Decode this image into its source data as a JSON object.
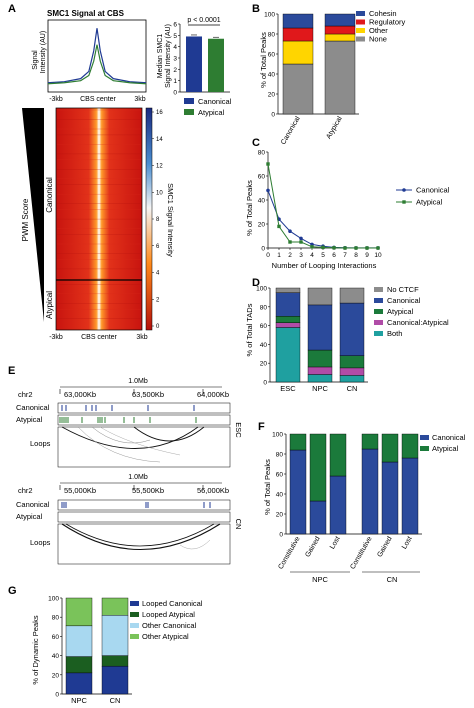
{
  "colors": {
    "navy": "#1f3a93",
    "green": "#2e7d32",
    "heat_high": "#ffffff",
    "heat_mid": "#ff7a1a",
    "heat_low": "#c8140f",
    "cohesin": "#2b4a9b",
    "regulatory": "#e0181b",
    "other": "#ffd500",
    "none": "#8c8c8c",
    "noctcf": "#8c8c8c",
    "canonical": "#2b4a9b",
    "atypical": "#1b7a3b",
    "canatyp": "#b04ca7",
    "both": "#1fa0a0",
    "looped_canonical": "#1f3a93",
    "looped_atypical": "#1b5e20",
    "other_canonical": "#a8d8f0",
    "other_atypical": "#7ac35a"
  },
  "panels": {
    "A": {
      "label": "A",
      "title": "SMC1 Signal at CBS",
      "profile_ylabel": "Signal\nIntensity (AU)",
      "x_ticks": [
        "-3kb",
        "CBS center",
        "3kb"
      ],
      "pvalue": "p < 0.0001",
      "bar_ylabel": "Median SMC1\nSignal Intensity (AU)",
      "bar_yticks": [
        "0",
        "1",
        "2",
        "3",
        "4",
        "5",
        "6"
      ],
      "legend": [
        "Canonical",
        "Atypical"
      ],
      "heat_rowlabels": [
        "Canonical",
        "Atypical"
      ],
      "pwm_label": "PWM Score",
      "colorbar_label": "SMC1 Signal Intensity",
      "colorbar_ticks": [
        "16",
        "14",
        "12",
        "10",
        "8",
        "6",
        "4",
        "2",
        "0"
      ]
    },
    "B": {
      "label": "B",
      "ylabel": "% of Total Peaks",
      "legend": [
        "Cohesin",
        "Regulatory",
        "Other",
        "None"
      ]
    },
    "C": {
      "label": "C",
      "ylabel": "% of Total Peaks",
      "xlabel": "Number of Looping Interactions",
      "legend": [
        "Canonical",
        "Atypical"
      ]
    },
    "D": {
      "label": "D",
      "ylabel": "% of Total TADs",
      "legend": [
        "No CTCF",
        "Canonical",
        "Atypical",
        "Canonical:Atypical",
        "Both"
      ]
    },
    "E": {
      "label": "E",
      "track1": {
        "scale": "1.0Mb",
        "chr": "chr2",
        "ticks": [
          "63,000Kb",
          "63,500Kb",
          "64,000Kb"
        ],
        "rows": [
          "Canonical",
          "Atypical",
          "Loops"
        ],
        "cell": "ESC"
      },
      "track2": {
        "scale": "1.0Mb",
        "chr": "chr2",
        "ticks": [
          "55,000Kb",
          "55,500Kb",
          "56,000Kb"
        ],
        "rows": [
          "Canonical",
          "Atypical",
          "Loops"
        ],
        "cell": "CN"
      }
    },
    "F": {
      "label": "F",
      "ylabel": "% of Total Peaks",
      "legend": [
        "Canonical",
        "Atypical"
      ],
      "groups": [
        "NPC",
        "CN"
      ]
    },
    "G": {
      "label": "G",
      "ylabel": "% of Dynamic Peaks",
      "legend": [
        "Looped Canonical",
        "Looped Atypical",
        "Other Canonical",
        "Other Atypical"
      ]
    }
  },
  "chart_data": [
    {
      "panel": "A-profile",
      "type": "line",
      "x": [
        -3,
        -2,
        -1,
        -0.5,
        -0.2,
        0,
        0.2,
        0.5,
        1,
        2,
        3
      ],
      "series": [
        {
          "name": "Canonical",
          "values": [
            0.9,
            1.0,
            1.3,
            2.0,
            4.0,
            6.2,
            4.0,
            2.0,
            1.3,
            1.0,
            0.9
          ]
        },
        {
          "name": "Atypical",
          "values": [
            0.8,
            0.9,
            1.1,
            1.6,
            3.0,
            4.6,
            3.0,
            1.6,
            1.1,
            0.9,
            0.8
          ]
        }
      ]
    },
    {
      "panel": "A-bar",
      "type": "bar",
      "categories": [
        "Canonical",
        "Atypical"
      ],
      "values": [
        4.9,
        4.7
      ],
      "ylim": [
        0,
        6
      ]
    },
    {
      "panel": "A-heatmap",
      "type": "heatmap",
      "rows": [
        "Canonical",
        "Atypical"
      ],
      "colorbar_range": [
        0,
        16
      ]
    },
    {
      "panel": "B",
      "type": "bar",
      "stacked": true,
      "categories": [
        "Canonical",
        "Atypical"
      ],
      "yticks": [
        0,
        20,
        40,
        60,
        80,
        100
      ],
      "ylim": [
        0,
        100
      ],
      "series": [
        {
          "name": "None",
          "values": [
            50,
            73
          ]
        },
        {
          "name": "Other",
          "values": [
            23,
            7
          ]
        },
        {
          "name": "Regulatory",
          "values": [
            13,
            8
          ]
        },
        {
          "name": "Cohesin",
          "values": [
            14,
            12
          ]
        }
      ]
    },
    {
      "panel": "C",
      "type": "line",
      "x": [
        0,
        1,
        2,
        3,
        4,
        5,
        6,
        7,
        8,
        9,
        10
      ],
      "yticks": [
        0,
        20,
        40,
        60,
        80
      ],
      "ylim": [
        0,
        80
      ],
      "series": [
        {
          "name": "Canonical",
          "values": [
            48,
            24,
            14,
            8,
            3,
            1.5,
            0.5,
            0.2,
            0.1,
            0.1,
            0.1
          ]
        },
        {
          "name": "Atypical",
          "values": [
            70,
            18,
            5,
            5,
            1,
            0.5,
            0.2,
            0,
            0,
            0,
            0
          ]
        }
      ]
    },
    {
      "panel": "D",
      "type": "bar",
      "stacked": true,
      "categories": [
        "ESC",
        "NPC",
        "CN"
      ],
      "yticks": [
        0,
        20,
        40,
        60,
        80,
        100
      ],
      "ylim": [
        0,
        100
      ],
      "series": [
        {
          "name": "Both",
          "values": [
            58,
            8,
            7
          ]
        },
        {
          "name": "Canonical:Atypical",
          "values": [
            5,
            8,
            8
          ]
        },
        {
          "name": "Atypical",
          "values": [
            7,
            18,
            13
          ]
        },
        {
          "name": "Canonical",
          "values": [
            25,
            48,
            56
          ]
        },
        {
          "name": "No CTCF",
          "values": [
            5,
            18,
            16
          ]
        }
      ]
    },
    {
      "panel": "F",
      "type": "bar",
      "stacked": true,
      "categories": [
        "Constitutive",
        "Gained",
        "Lost",
        "Constitutive",
        "Gained",
        "Lost"
      ],
      "groups": [
        "NPC",
        "NPC",
        "NPC",
        "CN",
        "CN",
        "CN"
      ],
      "yticks": [
        0,
        20,
        40,
        60,
        80,
        100
      ],
      "ylim": [
        0,
        100
      ],
      "series": [
        {
          "name": "Canonical",
          "values": [
            84,
            33,
            58,
            85,
            72,
            76
          ]
        },
        {
          "name": "Atypical",
          "values": [
            16,
            67,
            42,
            15,
            28,
            24
          ]
        }
      ]
    },
    {
      "panel": "G",
      "type": "bar",
      "stacked": true,
      "categories": [
        "NPC",
        "CN"
      ],
      "yticks": [
        0,
        20,
        40,
        60,
        80,
        100
      ],
      "ylim": [
        0,
        100
      ],
      "series": [
        {
          "name": "Looped Canonical",
          "values": [
            22,
            29
          ]
        },
        {
          "name": "Looped Atypical",
          "values": [
            17,
            11
          ]
        },
        {
          "name": "Other Canonical",
          "values": [
            32,
            42
          ]
        },
        {
          "name": "Other Atypical",
          "values": [
            29,
            18
          ]
        }
      ]
    }
  ]
}
